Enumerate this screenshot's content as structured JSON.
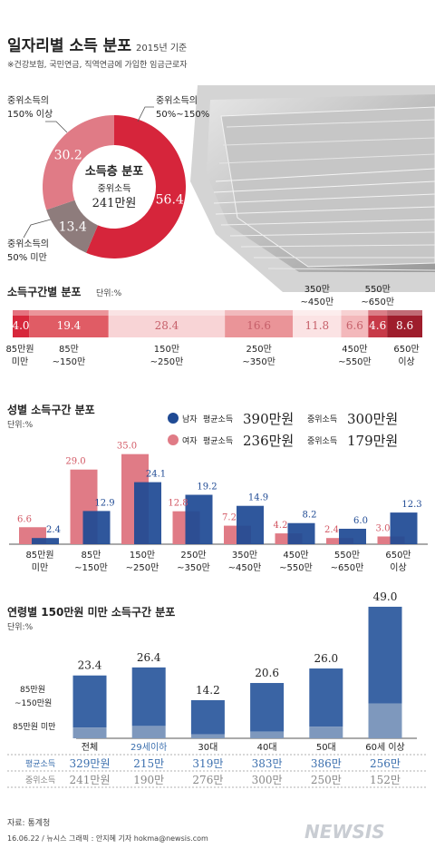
{
  "header": {
    "title": "일자리별 소득 분포",
    "year": "2015년 기준",
    "note": "※건강보험, 국민연금, 직역연금에 가입한 임금근로자"
  },
  "colors": {
    "red": "#d6253b",
    "pink": "#e07b86",
    "greybrown": "#8e7c7c",
    "blue": "#1f4a94",
    "blue_chart": "#3a64a4",
    "blue_light": "#7e98bd",
    "text_blue": "#3b6fae"
  },
  "donut": {
    "center_title": "소득층 분포",
    "center_sub": "중위소득",
    "center_value": "241만원",
    "segments": [
      {
        "label_line1": "중위소득의",
        "label_line2": "50%~150%",
        "value": 56.4,
        "color": "#d6253b"
      },
      {
        "label_line1": "중위소득의",
        "label_line2": "50% 미만",
        "value": 13.4,
        "color": "#8e7c7c"
      },
      {
        "label_line1": "중위소득의",
        "label_line2": "150% 이상",
        "value": 30.2,
        "color": "#e07b86"
      }
    ]
  },
  "bands": {
    "title": "소득구간별 분포",
    "unit": "단위:%",
    "segments": [
      {
        "label1": "85만원",
        "label2": "미만",
        "value": 4.0,
        "color": "#d7283c"
      },
      {
        "label1": "85만",
        "label2": "~150만",
        "value": 19.4,
        "color": "#e05c65"
      },
      {
        "label1": "150만",
        "label2": "~250만",
        "value": 28.4,
        "color": "#f8d4d6"
      },
      {
        "label1": "250만",
        "label2": "~350만",
        "value": 16.6,
        "color": "#ea9498"
      },
      {
        "label1": "350만",
        "label2": "~450만",
        "value": 11.8,
        "color": "#fbe3e4"
      },
      {
        "label1": "450만",
        "label2": "~550만",
        "value": 6.6,
        "color": "#f3b8bb"
      },
      {
        "label1": "550만",
        "label2": "~650만",
        "value": 4.6,
        "color": "#c73a48"
      },
      {
        "label1": "650만",
        "label2": "이상",
        "value": 8.6,
        "color": "#9e1d2c"
      }
    ]
  },
  "gender": {
    "title": "성별 소득구간 분포",
    "unit": "단위:%",
    "legend": [
      {
        "name": "남자",
        "avg_label": "평균소득",
        "avg_value": "390만원",
        "med_label": "중위소득",
        "med_value": "300만원"
      },
      {
        "name": "여자",
        "avg_label": "평균소득",
        "avg_value": "236만원",
        "med_label": "중위소득",
        "med_value": "179만원"
      }
    ]
  },
  "age": {
    "title": "연령별 150만원 미만 소득구간 분포",
    "unit": "단위:%",
    "band_upper1": "85만원",
    "band_upper2": "~150만원",
    "band_lower": "85만원 미만",
    "avg_label": "평균소득",
    "med_label": "중위소득",
    "avg_values": [
      "329만원",
      "215만",
      "319만",
      "383만",
      "386만",
      "256만"
    ],
    "med_values": [
      "241만원",
      "190만",
      "276만",
      "300만",
      "250만",
      "152만"
    ]
  },
  "chart_data": [
    {
      "type": "pie",
      "labels": [
        "중위소득의 50%~150%",
        "중위소득의 50% 미만",
        "중위소득의 150% 이상"
      ],
      "values": [
        56.4,
        13.4,
        30.2
      ]
    },
    {
      "type": "bar",
      "categories": [
        "85만원 미만",
        "85만~150만",
        "150만~250만",
        "250만~350만",
        "350만~450만",
        "450만~550만",
        "550만~650만",
        "650만 이상"
      ],
      "values": [
        4.0,
        19.4,
        28.4,
        16.6,
        11.8,
        6.6,
        4.6,
        8.6
      ],
      "title": "소득구간별 분포",
      "ylabel": "단위:%"
    },
    {
      "type": "bar",
      "title": "성별 소득구간 분포",
      "ylabel": "단위:%",
      "categories": [
        "85만원 미만",
        "85만 ~150만",
        "150만 ~250만",
        "250만 ~350만",
        "350만 ~450만",
        "450만 ~550만",
        "550만 ~650만",
        "650만 이상"
      ],
      "cat_line1": [
        "85만원",
        "85만",
        "150만",
        "250만",
        "350만",
        "450만",
        "550만",
        "650만"
      ],
      "cat_line2": [
        "미만",
        "~150만",
        "~250만",
        "~350만",
        "~450만",
        "~550만",
        "~650만",
        "이상"
      ],
      "series": [
        {
          "name": "여자",
          "values": [
            6.6,
            29.0,
            35.0,
            12.8,
            7.2,
            4.2,
            2.4,
            3.0
          ]
        },
        {
          "name": "남자",
          "values": [
            2.4,
            12.9,
            24.1,
            19.2,
            14.9,
            8.2,
            6.0,
            12.3
          ]
        }
      ],
      "ylim": [
        0,
        37
      ]
    },
    {
      "type": "bar",
      "title": "연령별 150만원 미만 소득구간 분포",
      "ylabel": "단위:%",
      "categories": [
        "전체",
        "29세이하",
        "30대",
        "40대",
        "50대",
        "60세 이상"
      ],
      "values": [
        23.4,
        26.4,
        14.2,
        20.6,
        26.0,
        49.0
      ],
      "lower_values": [
        4.0,
        4.6,
        1.5,
        2.5,
        4.3,
        13.0
      ],
      "ylim": [
        0,
        50
      ]
    }
  ],
  "footer": {
    "source": "자료: 통계청",
    "credit": "16.06.22 / 뉴시스 그래픽 : 안지혜 기자 hokma@newsis.com",
    "logo": "NEWSIS"
  }
}
